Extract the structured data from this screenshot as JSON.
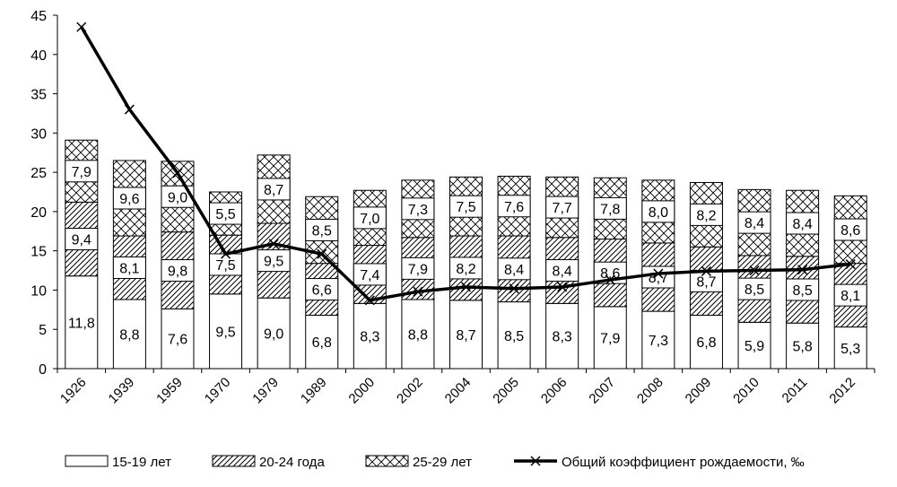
{
  "chart_data": {
    "type": "bar",
    "stacked": true,
    "categories": [
      "1926",
      "1939",
      "1959",
      "1970",
      "1979",
      "1989",
      "2000",
      "2002",
      "2004",
      "2005",
      "2006",
      "2007",
      "2008",
      "2009",
      "2010",
      "2011",
      "2012"
    ],
    "series": [
      {
        "name": "15-19 лет",
        "pattern": "plain",
        "values": [
          11.8,
          8.8,
          7.6,
          9.5,
          9.0,
          6.8,
          8.3,
          8.8,
          8.7,
          8.5,
          8.3,
          7.9,
          7.3,
          6.8,
          5.9,
          5.8,
          5.3
        ],
        "labels": [
          "11,8",
          "8,8",
          "7,6",
          "9,5",
          "9,0",
          "6,8",
          "8,3",
          "8,8",
          "8,7",
          "8,5",
          "8,3",
          "7,9",
          "7,3",
          "6,8",
          "5,9",
          "5,8",
          "5,3"
        ]
      },
      {
        "name": "20-24 года",
        "pattern": "diagonal",
        "values": [
          9.4,
          8.1,
          9.8,
          7.5,
          9.5,
          6.6,
          7.4,
          7.9,
          8.2,
          8.4,
          8.4,
          8.6,
          8.7,
          8.7,
          8.5,
          8.5,
          8.1
        ],
        "labels": [
          "9,4",
          "8,1",
          "9,8",
          "7,5",
          "9,5",
          "6,6",
          "7,4",
          "7,9",
          "8,2",
          "8,4",
          "8,4",
          "8,6",
          "8,7",
          "8,7",
          "8,5",
          "8,5",
          "8,1"
        ]
      },
      {
        "name": "25-29 лет",
        "pattern": "crosshatch",
        "values": [
          7.9,
          9.6,
          9.0,
          5.5,
          8.7,
          8.5,
          7.0,
          7.3,
          7.5,
          7.6,
          7.7,
          7.8,
          8.0,
          8.2,
          8.4,
          8.4,
          8.6
        ],
        "labels": [
          "7,9",
          "9,6",
          "9,0",
          "5,5",
          "8,7",
          "8,5",
          "7,0",
          "7,3",
          "7,5",
          "7,6",
          "7,7",
          "7,8",
          "8,0",
          "8,2",
          "8,4",
          "8,4",
          "8,6"
        ]
      }
    ],
    "line": {
      "name": "Общий коэффициент рождаемости, ‰",
      "values": [
        43.5,
        33.0,
        24.9,
        14.6,
        15.9,
        14.6,
        8.7,
        9.8,
        10.4,
        10.2,
        10.4,
        11.3,
        12.1,
        12.4,
        12.5,
        12.6,
        13.3
      ]
    },
    "ylim": [
      0,
      45
    ],
    "yticks": [
      0,
      5,
      10,
      15,
      20,
      25,
      30,
      35,
      40,
      45
    ],
    "legend_position": "bottom",
    "colors": {
      "bar_stroke": "#000000",
      "line": "#000000",
      "background": "#ffffff"
    }
  }
}
